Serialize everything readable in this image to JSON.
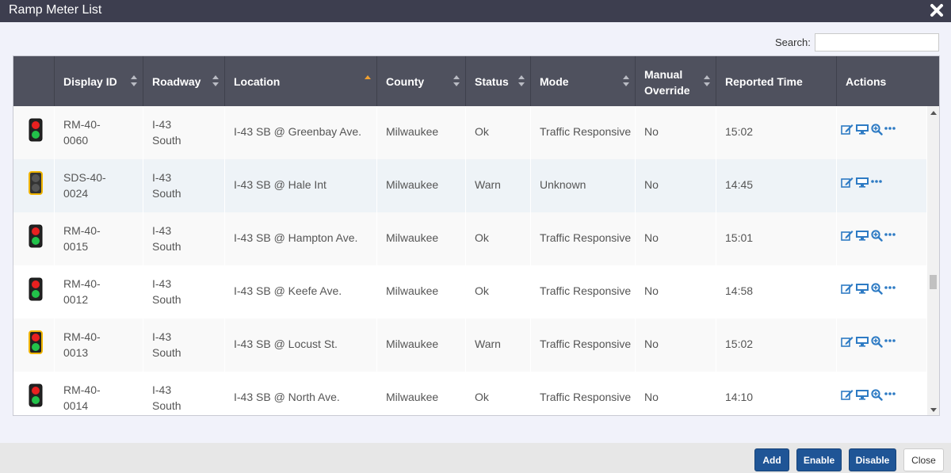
{
  "window": {
    "title": "Ramp Meter List"
  },
  "search": {
    "label": "Search:",
    "value": ""
  },
  "columns": {
    "display_id": "Display ID",
    "roadway": "Roadway",
    "location": "Location",
    "county": "County",
    "status": "Status",
    "mode": "Mode",
    "manual_override_1": "Manual",
    "manual_override_2": "Override",
    "reported_time": "Reported Time",
    "actions": "Actions"
  },
  "rows": [
    {
      "light": "red-green",
      "id1": "RM-40-",
      "id2": "0060",
      "road1": "I-43",
      "road2": "South",
      "location": "I-43 SB @ Greenbay Ave.",
      "county": "Milwaukee",
      "status": "Ok",
      "mode": "Traffic Responsive",
      "override": "No",
      "time": "15:02",
      "actions": [
        "edit-icon",
        "monitor-icon",
        "zoom-in-icon",
        "more-icon"
      ]
    },
    {
      "light": "off-yellow",
      "id1": "SDS-40-",
      "id2": "0024",
      "road1": "I-43",
      "road2": "South",
      "location": "I-43 SB @ Hale Int",
      "county": "Milwaukee",
      "status": "Warn",
      "mode": "Unknown",
      "override": "No",
      "time": "14:45",
      "actions": [
        "edit-icon",
        "monitor-icon",
        "more-icon"
      ]
    },
    {
      "light": "red-green",
      "id1": "RM-40-",
      "id2": "0015",
      "road1": "I-43",
      "road2": "South",
      "location": "I-43 SB @ Hampton Ave.",
      "county": "Milwaukee",
      "status": "Ok",
      "mode": "Traffic Responsive",
      "override": "No",
      "time": "15:01",
      "actions": [
        "edit-icon",
        "monitor-icon",
        "zoom-in-icon",
        "more-icon"
      ]
    },
    {
      "light": "red-green",
      "id1": "RM-40-",
      "id2": "0012",
      "road1": "I-43",
      "road2": "South",
      "location": "I-43 SB @ Keefe Ave.",
      "county": "Milwaukee",
      "status": "Ok",
      "mode": "Traffic Responsive",
      "override": "No",
      "time": "14:58",
      "actions": [
        "edit-icon",
        "monitor-icon",
        "zoom-in-icon",
        "more-icon"
      ]
    },
    {
      "light": "red-green-yellow",
      "id1": "RM-40-",
      "id2": "0013",
      "road1": "I-43",
      "road2": "South",
      "location": "I-43 SB @ Locust St.",
      "county": "Milwaukee",
      "status": "Warn",
      "mode": "Traffic Responsive",
      "override": "No",
      "time": "15:02",
      "actions": [
        "edit-icon",
        "monitor-icon",
        "zoom-in-icon",
        "more-icon"
      ]
    },
    {
      "light": "red-green",
      "id1": "RM-40-",
      "id2": "0014",
      "road1": "I-43",
      "road2": "South",
      "location": "I-43 SB @ North Ave.",
      "county": "Milwaukee",
      "status": "Ok",
      "mode": "Traffic Responsive",
      "override": "No",
      "time": "14:10",
      "actions": [
        "edit-icon",
        "monitor-icon",
        "zoom-in-icon",
        "more-icon"
      ]
    }
  ],
  "buttons": {
    "add": "Add",
    "enable": "Enable",
    "disable": "Disable",
    "close": "Close"
  },
  "colors": {
    "header": "#4f515e",
    "titlebar": "#3d3e4f",
    "primary_button": "#1f5596",
    "action_icon": "#2e7bc4",
    "sort_active": "#f0a030"
  }
}
